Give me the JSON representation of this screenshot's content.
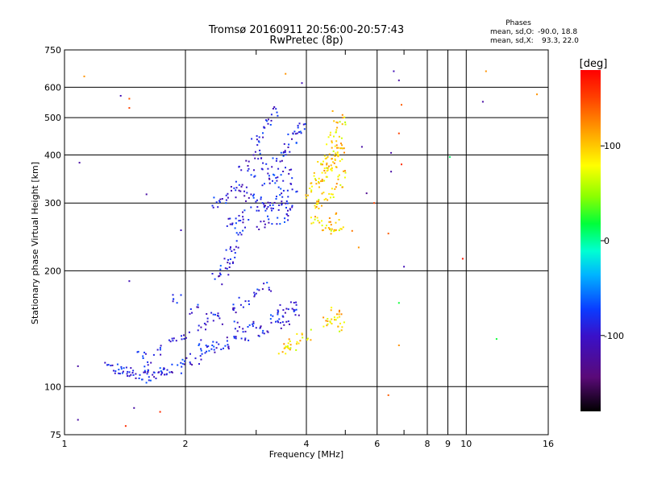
{
  "chart_data": {
    "type": "scatter",
    "title": "Tromsø 20160911 20:56:00-20:57:43",
    "subtitle": "RwPretec (8p)",
    "xlabel": "Frequency [MHz]",
    "ylabel": "Stationary phase Virtual Height [km]",
    "x_scale": "log",
    "y_scale": "log",
    "xlim": [
      1,
      16
    ],
    "ylim": [
      75,
      750
    ],
    "x_ticks": [
      1,
      2,
      4,
      6,
      8,
      9,
      10,
      16
    ],
    "x_tick_labels": [
      "1",
      "2",
      "4",
      "6",
      "8",
      "9",
      "10",
      "16"
    ],
    "x_minor_ticks": [
      3,
      5,
      7
    ],
    "y_ticks": [
      75,
      100,
      200,
      300,
      400,
      500,
      600,
      750
    ],
    "y_tick_labels": [
      "75",
      "100",
      "200",
      "300",
      "400",
      "500",
      "600",
      "750"
    ],
    "grid": true,
    "stats": {
      "heading": "Phases",
      "line1_label": "mean, sd,O:",
      "line1_value": "-90.0,  18.8",
      "line2_label": "mean, sd,X:",
      "line2_value": "93.3,  22.0"
    },
    "colorbar": {
      "label": "[deg]",
      "range": [
        -180,
        180
      ],
      "ticks": [
        100,
        0,
        -100
      ],
      "tick_labels": [
        "100",
        "0",
        "-100"
      ]
    },
    "series": [
      {
        "polarization": "O",
        "phase_mean": -90,
        "phase_sd": 18.8,
        "points": [
          [
            1.3,
            112
          ],
          [
            1.35,
            111
          ],
          [
            1.4,
            110
          ],
          [
            1.45,
            109
          ],
          [
            1.5,
            108
          ],
          [
            1.55,
            107
          ],
          [
            1.6,
            106
          ],
          [
            1.65,
            106
          ],
          [
            1.7,
            107
          ],
          [
            1.75,
            108
          ],
          [
            1.8,
            110
          ],
          [
            1.9,
            112
          ],
          [
            2.0,
            115
          ],
          [
            2.1,
            118
          ],
          [
            2.2,
            121
          ],
          [
            2.3,
            124
          ],
          [
            2.4,
            127
          ],
          [
            2.5,
            130
          ],
          [
            2.6,
            133
          ],
          [
            2.8,
            136
          ],
          [
            3.0,
            139
          ],
          [
            3.2,
            142
          ],
          [
            3.4,
            145
          ],
          [
            3.6,
            149
          ],
          [
            3.8,
            154
          ],
          [
            1.55,
            120
          ],
          [
            1.7,
            125
          ],
          [
            1.85,
            131
          ],
          [
            2.0,
            137
          ],
          [
            2.2,
            143
          ],
          [
            2.4,
            150
          ],
          [
            2.6,
            158
          ],
          [
            2.8,
            166
          ],
          [
            3.0,
            174
          ],
          [
            3.2,
            182
          ],
          [
            2.4,
            190
          ],
          [
            2.5,
            200
          ],
          [
            2.55,
            210
          ],
          [
            2.6,
            220
          ],
          [
            2.65,
            235
          ],
          [
            2.7,
            250
          ],
          [
            2.75,
            265
          ],
          [
            2.8,
            280
          ],
          [
            2.4,
            300
          ],
          [
            2.5,
            310
          ],
          [
            2.6,
            320
          ],
          [
            2.7,
            330
          ],
          [
            2.8,
            322
          ],
          [
            2.9,
            312
          ],
          [
            3.0,
            302
          ],
          [
            3.1,
            296
          ],
          [
            3.2,
            292
          ],
          [
            3.3,
            298
          ],
          [
            3.4,
            306
          ],
          [
            3.5,
            296
          ],
          [
            3.6,
            288
          ],
          [
            3.2,
            340
          ],
          [
            3.3,
            360
          ],
          [
            3.4,
            380
          ],
          [
            3.5,
            400
          ],
          [
            3.6,
            420
          ],
          [
            3.7,
            440
          ],
          [
            3.8,
            460
          ],
          [
            3.9,
            480
          ],
          [
            3.1,
            380
          ],
          [
            3.0,
            400
          ],
          [
            3.0,
            430
          ],
          [
            3.1,
            460
          ],
          [
            3.2,
            490
          ],
          [
            3.3,
            520
          ],
          [
            2.9,
            360
          ],
          [
            2.8,
            375
          ],
          [
            3.4,
            350
          ],
          [
            3.6,
            360
          ],
          [
            3.7,
            330
          ],
          [
            3.5,
            320
          ],
          [
            3.3,
            268
          ],
          [
            3.5,
            272
          ],
          [
            3.1,
            265
          ],
          [
            2.6,
            270
          ],
          [
            1.9,
            170
          ],
          [
            2.1,
            158
          ],
          [
            2.3,
            152
          ],
          [
            2.7,
            143
          ],
          [
            2.9,
            148
          ],
          [
            3.3,
            152
          ],
          [
            3.5,
            158
          ],
          [
            3.7,
            162
          ],
          [
            2.2,
            128
          ],
          [
            1.6,
            113
          ]
        ]
      },
      {
        "polarization": "X",
        "phase_mean": 93.3,
        "phase_sd": 22.0,
        "points": [
          [
            4.2,
            330
          ],
          [
            4.3,
            345
          ],
          [
            4.4,
            360
          ],
          [
            4.5,
            375
          ],
          [
            4.6,
            390
          ],
          [
            4.7,
            410
          ],
          [
            4.8,
            430
          ],
          [
            4.7,
            450
          ],
          [
            4.8,
            475
          ],
          [
            4.9,
            495
          ],
          [
            4.3,
            300
          ],
          [
            4.5,
            310
          ],
          [
            4.6,
            255
          ],
          [
            4.8,
            252
          ],
          [
            4.5,
            260
          ],
          [
            4.4,
            262
          ],
          [
            4.2,
            268
          ],
          [
            4.6,
            320
          ],
          [
            4.8,
            335
          ],
          [
            4.9,
            360
          ],
          [
            3.6,
            130
          ],
          [
            3.8,
            133
          ],
          [
            4.0,
            136
          ],
          [
            3.7,
            128
          ],
          [
            3.5,
            126
          ],
          [
            4.6,
            145
          ],
          [
            4.8,
            150
          ],
          [
            4.7,
            158
          ],
          [
            4.5,
            148
          ],
          [
            4.9,
            142
          ],
          [
            4.4,
            390
          ],
          [
            4.7,
            400
          ],
          [
            4.9,
            415
          ],
          [
            4.5,
            365
          ],
          [
            4.1,
            320
          ],
          [
            4.3,
            350
          ],
          [
            4.6,
            430
          ],
          [
            4.8,
            380
          ],
          [
            4.2,
            294
          ],
          [
            4.7,
            275
          ]
        ]
      }
    ],
    "scatter_outliers": [
      {
        "x": 1.12,
        "y": 640,
        "phase": 120
      },
      {
        "x": 1.38,
        "y": 570,
        "phase": -110
      },
      {
        "x": 1.45,
        "y": 560,
        "phase": 140
      },
      {
        "x": 1.45,
        "y": 530,
        "phase": 150
      },
      {
        "x": 1.09,
        "y": 382,
        "phase": -120
      },
      {
        "x": 1.6,
        "y": 316,
        "phase": -120
      },
      {
        "x": 1.95,
        "y": 255,
        "phase": -110
      },
      {
        "x": 1.45,
        "y": 188,
        "phase": -110
      },
      {
        "x": 1.08,
        "y": 113,
        "phase": -120
      },
      {
        "x": 1.49,
        "y": 88,
        "phase": -120
      },
      {
        "x": 1.73,
        "y": 86,
        "phase": 160
      },
      {
        "x": 1.42,
        "y": 79,
        "phase": 160
      },
      {
        "x": 1.08,
        "y": 82,
        "phase": -120
      },
      {
        "x": 3.55,
        "y": 650,
        "phase": 120
      },
      {
        "x": 3.9,
        "y": 615,
        "phase": -110
      },
      {
        "x": 4.65,
        "y": 520,
        "phase": 110
      },
      {
        "x": 5.5,
        "y": 420,
        "phase": -120
      },
      {
        "x": 5.65,
        "y": 318,
        "phase": -130
      },
      {
        "x": 5.9,
        "y": 300,
        "phase": 150
      },
      {
        "x": 6.6,
        "y": 660,
        "phase": -110
      },
      {
        "x": 6.8,
        "y": 625,
        "phase": -120
      },
      {
        "x": 6.9,
        "y": 540,
        "phase": 140
      },
      {
        "x": 6.8,
        "y": 455,
        "phase": 150
      },
      {
        "x": 6.5,
        "y": 405,
        "phase": -120
      },
      {
        "x": 6.9,
        "y": 378,
        "phase": 160
      },
      {
        "x": 6.5,
        "y": 362,
        "phase": -120
      },
      {
        "x": 6.4,
        "y": 250,
        "phase": 140
      },
      {
        "x": 7.0,
        "y": 205,
        "phase": -110
      },
      {
        "x": 6.8,
        "y": 165,
        "phase": 20
      },
      {
        "x": 6.8,
        "y": 128,
        "phase": 120
      },
      {
        "x": 6.4,
        "y": 95,
        "phase": 140
      },
      {
        "x": 9.1,
        "y": 395,
        "phase": 10
      },
      {
        "x": 9.8,
        "y": 215,
        "phase": 170
      },
      {
        "x": 11.0,
        "y": 550,
        "phase": -120
      },
      {
        "x": 11.2,
        "y": 660,
        "phase": 120
      },
      {
        "x": 11.9,
        "y": 133,
        "phase": 20
      },
      {
        "x": 15.0,
        "y": 575,
        "phase": 120
      },
      {
        "x": 5.2,
        "y": 254,
        "phase": 130
      },
      {
        "x": 5.4,
        "y": 230,
        "phase": 120
      }
    ]
  }
}
